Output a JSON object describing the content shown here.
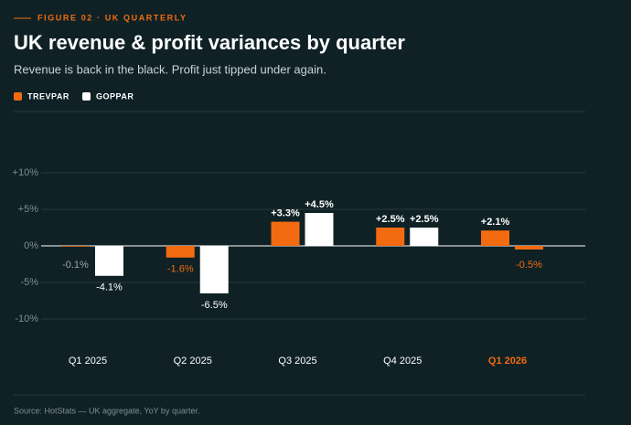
{
  "chart_data": {
    "type": "bar",
    "eyebrow": "FIGURE 02 · UK QUARTERLY",
    "title": "UK revenue & profit variances by quarter",
    "subtitle": "Revenue is back in the black. Profit just tipped under again.",
    "categories": [
      "Q1 2025",
      "Q2 2025",
      "Q3 2025",
      "Q4 2025",
      "Q1 2026"
    ],
    "series": [
      {
        "name": "TREVPAR",
        "color": "#f26b10",
        "values": [
          -0.1,
          -1.6,
          3.3,
          2.5,
          2.1
        ],
        "value_labels": [
          "-0.1%",
          "-1.6%",
          "+3.3%",
          "+2.5%",
          "+2.1%"
        ]
      },
      {
        "name": "GOPPAR",
        "color": "#ffffff",
        "values": [
          -4.1,
          -6.5,
          4.5,
          2.5,
          -0.5
        ],
        "value_labels": [
          "-4.1%",
          "-6.5%",
          "+4.5%",
          "+2.5%",
          "-0.5%"
        ]
      }
    ],
    "highlight_category": 4,
    "highlight_color": "#f26b10",
    "ylim": [
      -14,
      14
    ],
    "yticks": [
      {
        "value": -10,
        "label": "-10%"
      },
      {
        "value": -5,
        "label": "-5%"
      },
      {
        "value": 0,
        "label": "0%"
      },
      {
        "value": 5,
        "label": "+5%"
      },
      {
        "value": 10,
        "label": "+10%"
      }
    ],
    "grid": true,
    "legend": "top-left",
    "source": "Source: HotStats — UK aggregate, YoY by quarter."
  }
}
